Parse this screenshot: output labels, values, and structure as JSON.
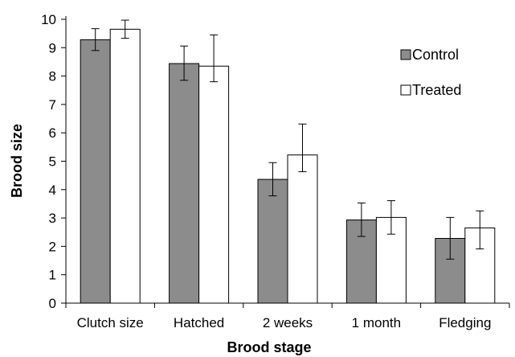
{
  "chart_data": {
    "type": "bar",
    "title": "",
    "xlabel": "Brood stage",
    "ylabel": "Brood size",
    "ylim": [
      0,
      10
    ],
    "yticks": [
      0,
      1,
      2,
      3,
      4,
      5,
      6,
      7,
      8,
      9,
      10
    ],
    "categories": [
      "Clutch size",
      "Hatched",
      "2 weeks",
      "1 month",
      "Fledging"
    ],
    "grid": false,
    "legend_position": "top-right",
    "series": [
      {
        "name": "Control",
        "color": "#8c8c8c",
        "values": [
          9.28,
          8.44,
          4.36,
          2.93,
          2.28
        ],
        "err_low": [
          8.9,
          7.85,
          3.78,
          2.35,
          1.55
        ],
        "err_high": [
          9.67,
          9.06,
          4.95,
          3.53,
          3.02
        ]
      },
      {
        "name": "Treated",
        "color": "#ffffff",
        "values": [
          9.65,
          8.35,
          5.22,
          3.02,
          2.65
        ],
        "err_low": [
          9.33,
          7.8,
          4.63,
          2.43,
          1.91
        ],
        "err_high": [
          9.97,
          9.45,
          6.31,
          3.61,
          3.25
        ]
      }
    ]
  }
}
